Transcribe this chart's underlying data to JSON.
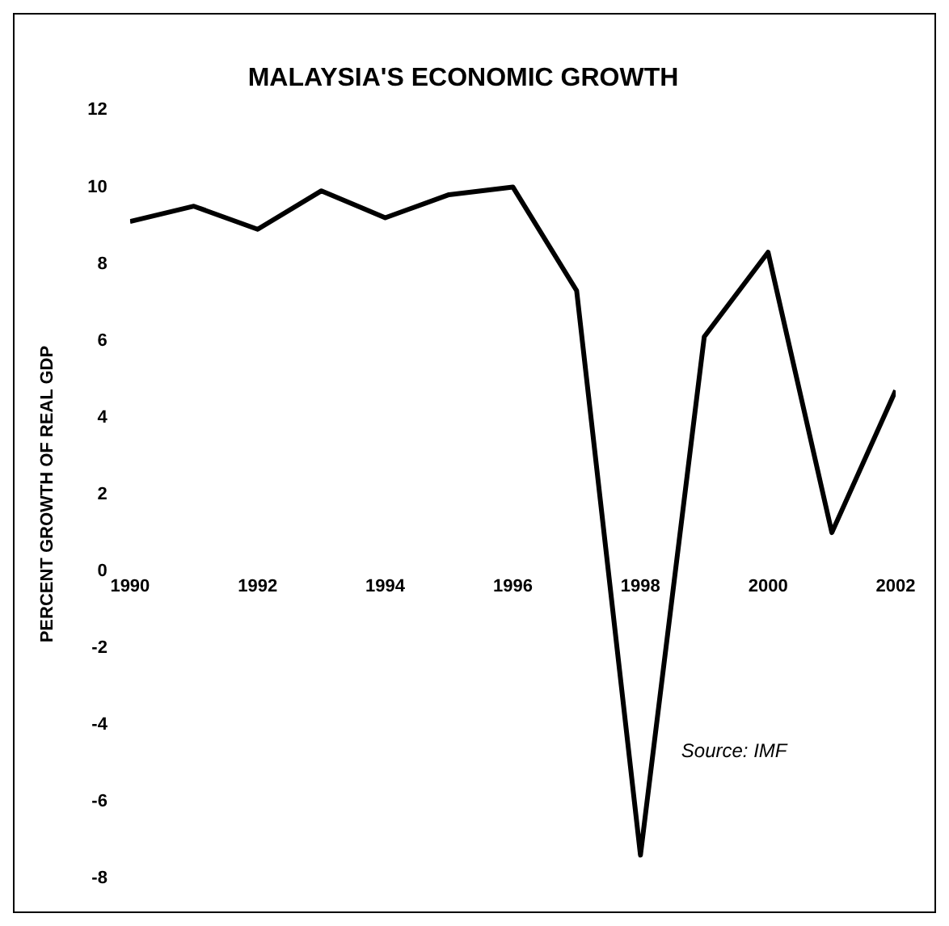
{
  "chart_data": {
    "type": "line",
    "title": "MALAYSIA'S ECONOMIC GROWTH",
    "ylabel": "PERCENT GROWTH OF REAL GDP",
    "x": [
      1990,
      1991,
      1992,
      1993,
      1994,
      1995,
      1996,
      1997,
      1998,
      1999,
      2000,
      2001,
      2002
    ],
    "series": [
      {
        "color": "#000000",
        "values": [
          9.1,
          9.5,
          8.9,
          9.9,
          9.2,
          9.8,
          10.0,
          7.3,
          -7.4,
          6.1,
          8.3,
          1.0,
          4.7
        ]
      }
    ],
    "xlim": [
      1990,
      2002
    ],
    "xticks": [
      1990,
      1992,
      1994,
      1996,
      1998,
      2000,
      2002
    ],
    "ylim": [
      -8,
      12
    ],
    "yticks": [
      -8,
      -6,
      -4,
      -2,
      0,
      2,
      4,
      6,
      8,
      10,
      12
    ],
    "annotations": [
      "Source: IMF"
    ],
    "grid": false,
    "legend": false,
    "marker": "none",
    "line_style": "solid"
  }
}
